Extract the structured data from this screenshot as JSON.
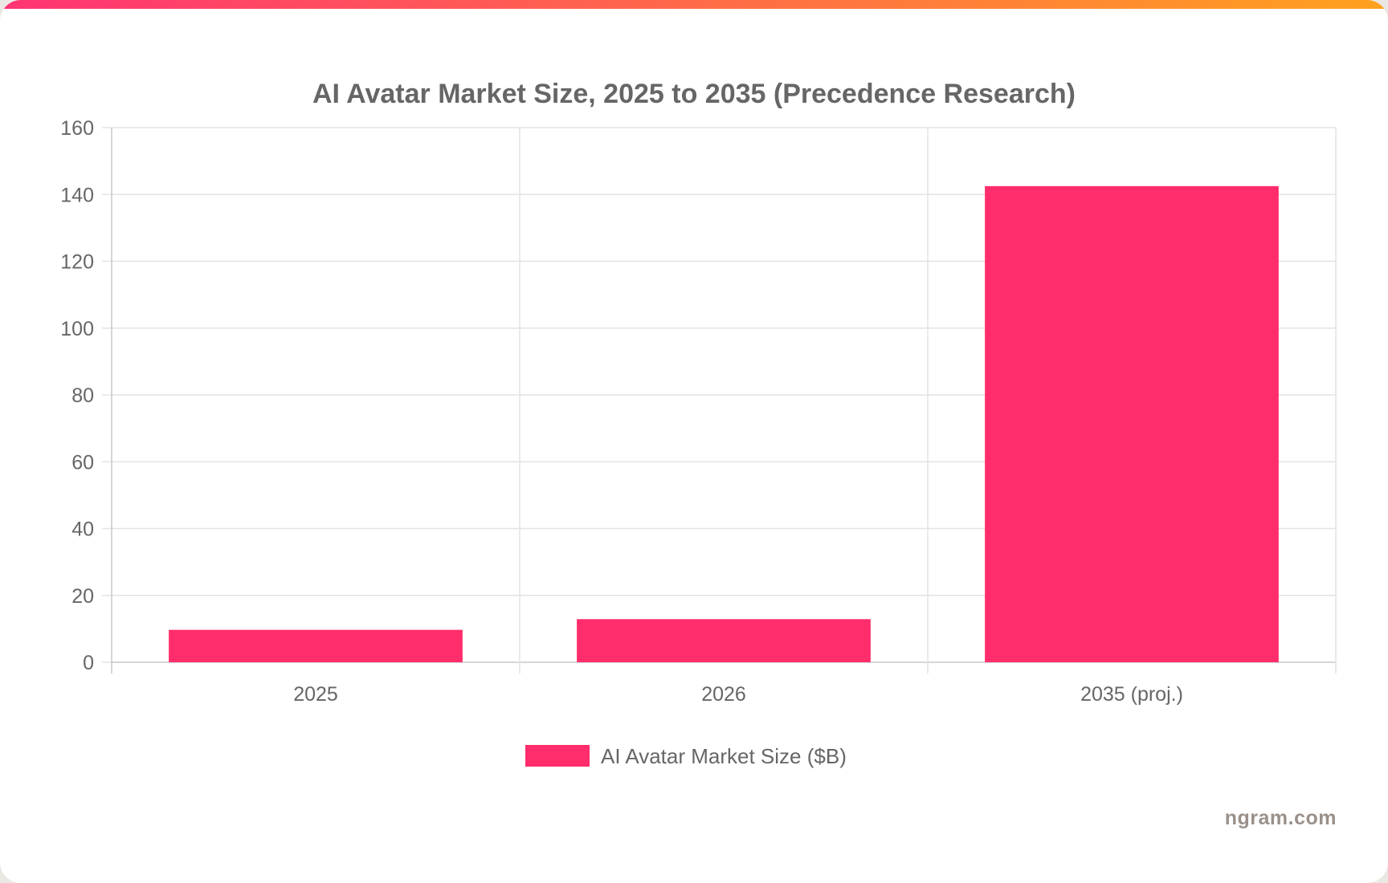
{
  "colors": {
    "bar": "#ff2d6b",
    "top_bar_start": "#ff3374",
    "top_bar_end": "#ffa21f",
    "grid": "#e3e3e3",
    "axis": "#c8c8c8",
    "text": "#666666",
    "watermark": "#9a918a"
  },
  "watermark": "ngram.com",
  "chart_data": {
    "type": "bar",
    "title": "AI Avatar Market Size, 2025 to 2035 (Precedence Research)",
    "categories": [
      "2025",
      "2026",
      "2035 (proj.)"
    ],
    "series": [
      {
        "name": "AI Avatar Market Size ($B)",
        "values": [
          9.7,
          12.9,
          142.5
        ]
      }
    ],
    "ylim": [
      0,
      160
    ],
    "yticks": [
      0,
      20,
      40,
      60,
      80,
      100,
      120,
      140,
      160
    ],
    "grid": true,
    "legend": "bottom-center"
  }
}
